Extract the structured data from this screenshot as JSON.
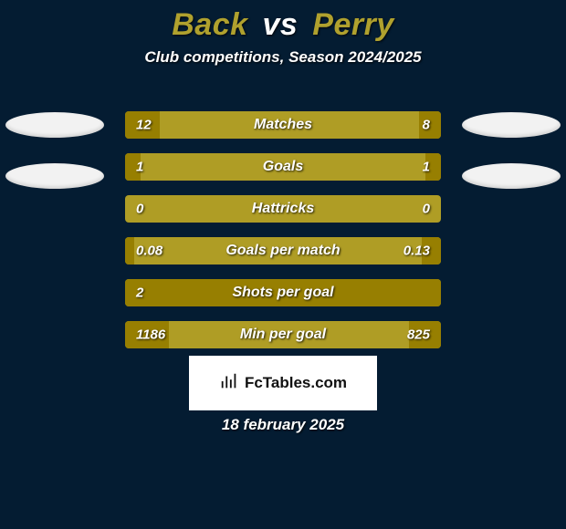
{
  "header": {
    "player1": "Back",
    "vs": "vs",
    "player2": "Perry",
    "player1_color": "#b0a12e",
    "player2_color": "#b0a12e",
    "subtitle": "Club competitions, Season 2024/2025"
  },
  "chips": {
    "left_count": 2,
    "right_count": 2,
    "fill": "#f2f2f2"
  },
  "bars": {
    "track_color": "#af9d25",
    "fill_color": "#977f01",
    "items": [
      {
        "label": "Matches",
        "left": "12",
        "right": "8",
        "left_pct": 11,
        "right_pct": 7
      },
      {
        "label": "Goals",
        "left": "1",
        "right": "1",
        "left_pct": 5,
        "right_pct": 5
      },
      {
        "label": "Hattricks",
        "left": "0",
        "right": "0",
        "left_pct": 0,
        "right_pct": 0
      },
      {
        "label": "Goals per match",
        "left": "0.08",
        "right": "0.13",
        "left_pct": 3,
        "right_pct": 6
      },
      {
        "label": "Shots per goal",
        "left": "2",
        "right": "",
        "left_pct": 100,
        "right_pct": 0
      },
      {
        "label": "Min per goal",
        "left": "1186",
        "right": "825",
        "left_pct": 14,
        "right_pct": 10
      }
    ]
  },
  "brand": {
    "text": "FcTables.com"
  },
  "date": "18 february 2025",
  "palette": {
    "background": "#041c32",
    "text": "#ffffff"
  }
}
